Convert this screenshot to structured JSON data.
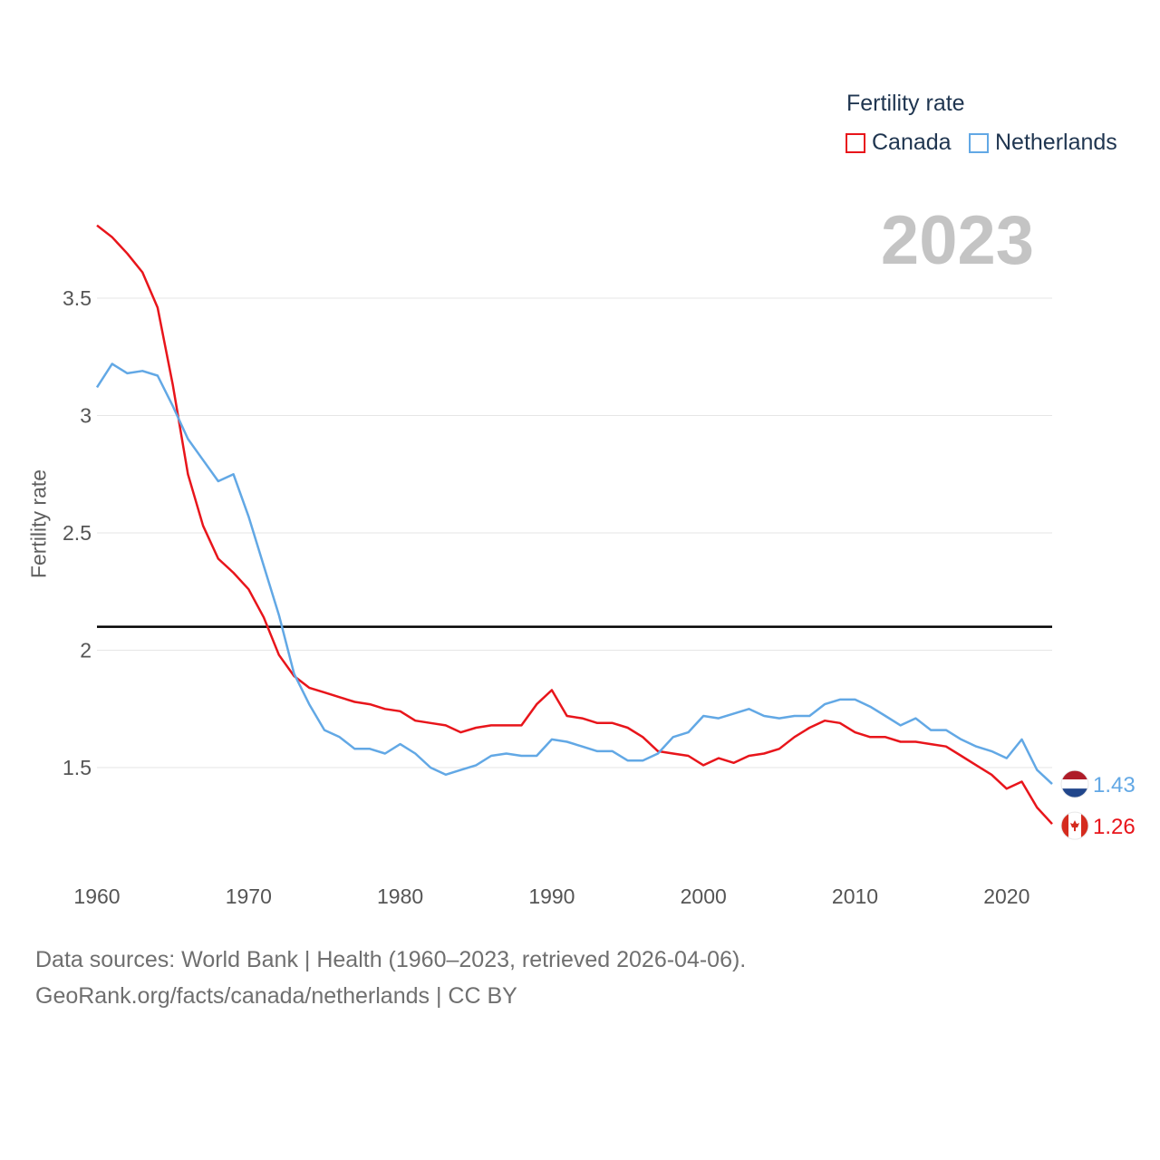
{
  "legend": {
    "title": "Fertility rate",
    "items": [
      {
        "label": "Canada",
        "color": "#e8151b"
      },
      {
        "label": "Netherlands",
        "color": "#62a8e5"
      }
    ]
  },
  "current_year": "2023",
  "footer": {
    "line1": "Data sources: World Bank | Health (1960–2023, retrieved 2026-04-06).",
    "line2": "GeoRank.org/facts/canada/netherlands | CC BY"
  },
  "chart_data": {
    "type": "line",
    "title": "",
    "xlabel": "",
    "ylabel": "Fertility rate",
    "xlim": [
      1960,
      2023
    ],
    "ylim": [
      1.1,
      3.85
    ],
    "xticks": [
      1960,
      1970,
      1980,
      1990,
      2000,
      2010,
      2020
    ],
    "yticks": [
      1.5,
      2,
      2.5,
      3,
      3.5
    ],
    "ytick_labels": [
      "1.5",
      "2",
      "2.5",
      "3",
      "3.5"
    ],
    "reference_line": 2.1,
    "grid": true,
    "legend_position": "top-right",
    "x": [
      1960,
      1961,
      1962,
      1963,
      1964,
      1965,
      1966,
      1967,
      1968,
      1969,
      1970,
      1971,
      1972,
      1973,
      1974,
      1975,
      1976,
      1977,
      1978,
      1979,
      1980,
      1981,
      1982,
      1983,
      1984,
      1985,
      1986,
      1987,
      1988,
      1989,
      1990,
      1991,
      1992,
      1993,
      1994,
      1995,
      1996,
      1997,
      1998,
      1999,
      2000,
      2001,
      2002,
      2003,
      2004,
      2005,
      2006,
      2007,
      2008,
      2009,
      2010,
      2011,
      2012,
      2013,
      2014,
      2015,
      2016,
      2017,
      2018,
      2019,
      2020,
      2021,
      2022,
      2023
    ],
    "series": [
      {
        "name": "Canada",
        "color": "#e8151b",
        "end_label": "1.26",
        "values": [
          3.81,
          3.76,
          3.69,
          3.61,
          3.46,
          3.13,
          2.75,
          2.53,
          2.39,
          2.33,
          2.26,
          2.14,
          1.98,
          1.89,
          1.84,
          1.82,
          1.8,
          1.78,
          1.77,
          1.75,
          1.74,
          1.7,
          1.69,
          1.68,
          1.65,
          1.67,
          1.68,
          1.68,
          1.68,
          1.77,
          1.83,
          1.72,
          1.71,
          1.69,
          1.69,
          1.67,
          1.63,
          1.57,
          1.56,
          1.55,
          1.51,
          1.54,
          1.52,
          1.55,
          1.56,
          1.58,
          1.63,
          1.67,
          1.7,
          1.69,
          1.65,
          1.63,
          1.63,
          1.61,
          1.61,
          1.6,
          1.59,
          1.55,
          1.51,
          1.47,
          1.41,
          1.44,
          1.33,
          1.26
        ]
      },
      {
        "name": "Netherlands",
        "color": "#62a8e5",
        "end_label": "1.43",
        "values": [
          3.12,
          3.22,
          3.18,
          3.19,
          3.17,
          3.04,
          2.9,
          2.81,
          2.72,
          2.75,
          2.57,
          2.36,
          2.15,
          1.9,
          1.77,
          1.66,
          1.63,
          1.58,
          1.58,
          1.56,
          1.6,
          1.56,
          1.5,
          1.47,
          1.49,
          1.51,
          1.55,
          1.56,
          1.55,
          1.55,
          1.62,
          1.61,
          1.59,
          1.57,
          1.57,
          1.53,
          1.53,
          1.56,
          1.63,
          1.65,
          1.72,
          1.71,
          1.73,
          1.75,
          1.72,
          1.71,
          1.72,
          1.72,
          1.77,
          1.79,
          1.79,
          1.76,
          1.72,
          1.68,
          1.71,
          1.66,
          1.66,
          1.62,
          1.59,
          1.57,
          1.54,
          1.62,
          1.49,
          1.43
        ]
      }
    ]
  }
}
